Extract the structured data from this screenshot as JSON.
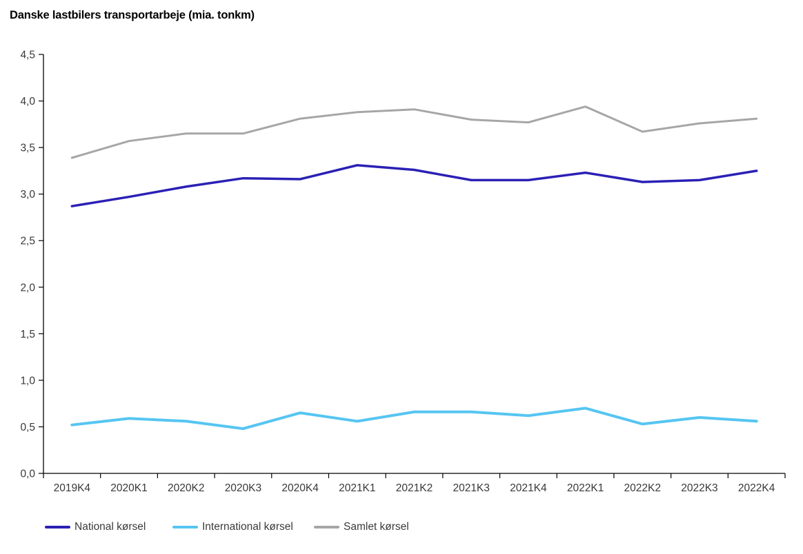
{
  "chart_data": {
    "type": "line",
    "title": "Danske lastbilers transportarbeje (mia. tonkm)",
    "categories": [
      "2019K4",
      "2020K1",
      "2020K2",
      "2020K3",
      "2020K4",
      "2021K1",
      "2021K2",
      "2021K3",
      "2021K4",
      "2022K1",
      "2022K2",
      "2022K3",
      "2022K4"
    ],
    "series": [
      {
        "name": "National kørsel",
        "color": "#2B20B5",
        "width": 3.5,
        "values": [
          2.87,
          2.97,
          3.08,
          3.17,
          3.16,
          3.31,
          3.26,
          3.15,
          3.15,
          3.23,
          3.13,
          3.15,
          3.25
        ]
      },
      {
        "name": "International kørsel",
        "color": "#56C5F2",
        "width": 4,
        "values": [
          0.52,
          0.59,
          0.56,
          0.48,
          0.65,
          0.56,
          0.66,
          0.66,
          0.62,
          0.7,
          0.53,
          0.6,
          0.56
        ]
      },
      {
        "name": "Samlet kørsel",
        "color": "#A6A6A6",
        "width": 3,
        "values": [
          3.39,
          3.57,
          3.65,
          3.65,
          3.81,
          3.88,
          3.91,
          3.8,
          3.77,
          3.94,
          3.67,
          3.76,
          3.81
        ]
      }
    ],
    "xlabel": "",
    "ylabel": "",
    "ylim": [
      0,
      4.5
    ],
    "y_tick_labels": [
      "0,0",
      "0,5",
      "1,0",
      "1,5",
      "2,0",
      "2,5",
      "3,0",
      "3,5",
      "4,0",
      "4,5"
    ],
    "grid": false,
    "legend_position": "bottom-left",
    "axis_color": "#000000",
    "tick_label_color": "#383838"
  }
}
